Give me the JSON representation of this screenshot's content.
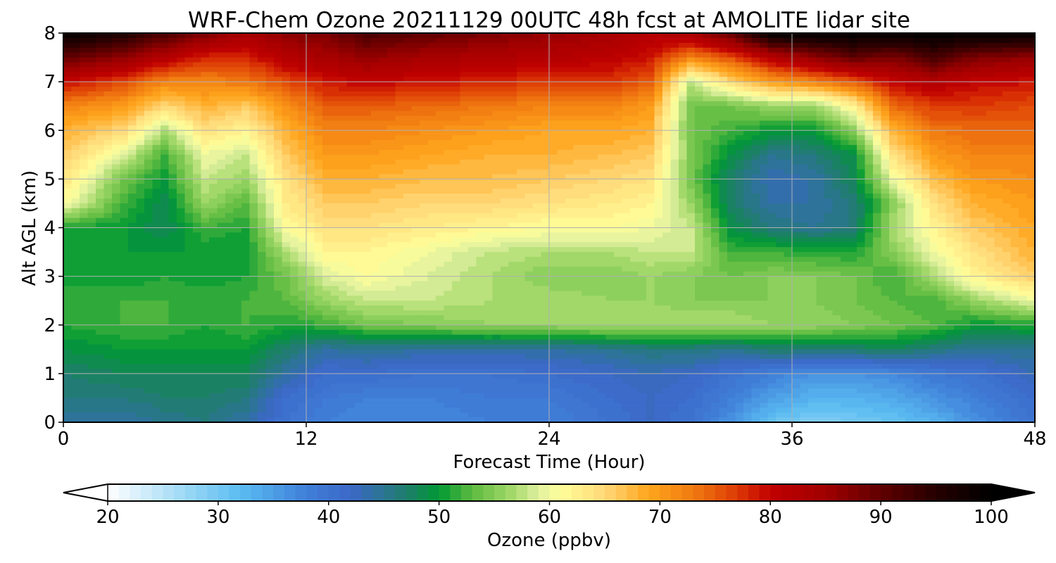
{
  "chart_data": {
    "type": "heatmap",
    "title": "WRF-Chem Ozone  20211129 00UTC 48h fcst at AMOLITE lidar site",
    "xlabel": "Forecast Time (Hour)",
    "ylabel": "Alt AGL (km)",
    "xlim": [
      0,
      48
    ],
    "ylim": [
      0,
      8
    ],
    "xticks": [
      "0",
      "12",
      "24",
      "36",
      "48"
    ],
    "yticks": [
      "0",
      "1",
      "2",
      "3",
      "4",
      "5",
      "6",
      "7",
      "8"
    ],
    "grid": true,
    "x_hours": [
      0,
      3,
      5,
      7,
      9,
      11,
      13,
      15,
      18,
      21,
      24,
      27,
      29,
      31,
      33,
      35,
      37,
      39,
      41,
      43,
      45,
      48
    ],
    "z_km": [
      0,
      0.5,
      1,
      1.5,
      2,
      2.5,
      3,
      3.5,
      4,
      4.5,
      5,
      5.5,
      6,
      6.5,
      7,
      7.5,
      8
    ],
    "ozone_ppbv": [
      [
        44,
        44,
        45,
        46,
        44,
        40,
        38,
        37,
        37,
        38,
        38,
        40,
        42,
        40,
        36,
        31,
        29,
        30,
        31,
        33,
        36,
        40
      ],
      [
        46,
        46,
        47,
        47,
        46,
        41,
        39,
        38,
        38,
        39,
        39,
        41,
        42,
        41,
        38,
        35,
        33,
        33,
        34,
        36,
        38,
        41
      ],
      [
        47,
        48,
        48,
        48,
        48,
        44,
        41,
        41,
        40,
        40,
        41,
        42,
        43,
        42,
        40,
        38,
        36,
        36,
        37,
        39,
        40,
        43
      ],
      [
        49,
        50,
        50,
        50,
        50,
        47,
        44,
        45,
        44,
        44,
        44,
        45,
        46,
        46,
        45,
        47,
        47,
        47,
        48,
        46,
        45,
        45
      ],
      [
        51,
        52,
        52,
        51,
        52,
        51,
        52,
        54,
        55,
        56,
        56,
        57,
        57,
        57,
        57,
        56,
        56,
        55,
        54,
        53,
        50,
        51
      ],
      [
        51,
        52,
        52,
        52,
        52,
        53,
        56,
        58,
        58,
        57,
        57,
        56,
        56,
        55,
        55,
        55,
        55,
        54,
        53,
        52,
        56,
        60
      ],
      [
        51,
        50,
        51,
        50,
        51,
        54,
        59,
        61,
        59,
        57,
        55,
        55,
        56,
        55,
        54,
        55,
        55,
        54,
        52,
        57,
        62,
        66
      ],
      [
        50,
        50,
        50,
        50,
        50,
        57,
        62,
        62,
        60,
        58,
        57,
        57,
        58,
        58,
        52,
        52,
        51,
        51,
        55,
        60,
        64,
        68
      ],
      [
        51,
        50,
        48,
        52,
        51,
        61,
        64,
        64,
        63,
        62,
        61,
        61,
        60,
        58,
        49,
        46,
        45,
        46,
        57,
        62,
        66,
        69
      ],
      [
        61,
        52,
        48,
        56,
        53,
        63,
        66,
        66,
        65,
        65,
        64,
        63,
        62,
        56,
        47,
        44,
        44,
        46,
        55,
        64,
        68,
        70
      ],
      [
        64,
        54,
        50,
        58,
        56,
        64,
        68,
        68,
        67,
        67,
        66,
        65,
        64,
        54,
        47,
        43,
        44,
        48,
        60,
        67,
        70,
        71
      ],
      [
        66,
        59,
        52,
        60,
        58,
        66,
        70,
        70,
        69,
        68,
        68,
        67,
        66,
        55,
        49,
        45,
        46,
        49,
        64,
        70,
        72,
        72
      ],
      [
        68,
        65,
        57,
        64,
        62,
        68,
        72,
        72,
        71,
        70,
        69,
        69,
        68,
        54,
        52,
        50,
        50,
        55,
        68,
        73,
        74,
        74
      ],
      [
        72,
        70,
        65,
        68,
        66,
        71,
        75,
        75,
        74,
        73,
        72,
        72,
        70,
        54,
        54,
        56,
        56,
        62,
        74,
        77,
        77,
        76
      ],
      [
        80,
        76,
        72,
        72,
        73,
        76,
        79,
        80,
        79,
        78,
        77,
        77,
        75,
        58,
        65,
        70,
        72,
        75,
        80,
        82,
        80,
        79
      ],
      [
        90,
        86,
        82,
        78,
        78,
        82,
        84,
        86,
        84,
        83,
        82,
        81,
        79,
        72,
        76,
        82,
        86,
        90,
        88,
        92,
        88,
        86
      ],
      [
        100,
        96,
        92,
        88,
        84,
        87,
        88,
        92,
        90,
        88,
        86,
        84,
        82,
        84,
        90,
        100,
        100,
        100,
        100,
        100,
        100,
        100
      ]
    ],
    "colorbar": {
      "label": "Ozone  (ppbv)",
      "ticks": [
        "20",
        "30",
        "40",
        "50",
        "60",
        "70",
        "80",
        "90",
        "100"
      ],
      "min": 20,
      "max": 100,
      "step": 1,
      "extend": "both"
    },
    "colormap_stops": [
      {
        "value": 20,
        "color": "#ffffff"
      },
      {
        "value": 28,
        "color": "#8fd3f4"
      },
      {
        "value": 32,
        "color": "#5bbcf2"
      },
      {
        "value": 38,
        "color": "#3f7fd8"
      },
      {
        "value": 42,
        "color": "#3c68c8"
      },
      {
        "value": 47,
        "color": "#1f7d6c"
      },
      {
        "value": 50,
        "color": "#009933"
      },
      {
        "value": 53,
        "color": "#5dbb40"
      },
      {
        "value": 57,
        "color": "#acdc70"
      },
      {
        "value": 59,
        "color": "#e0f0a0"
      },
      {
        "value": 61,
        "color": "#ffff99"
      },
      {
        "value": 65,
        "color": "#ffd878"
      },
      {
        "value": 69,
        "color": "#ffa51c"
      },
      {
        "value": 73,
        "color": "#f07a10"
      },
      {
        "value": 77,
        "color": "#dd3a05"
      },
      {
        "value": 80,
        "color": "#c00000"
      },
      {
        "value": 85,
        "color": "#a00000"
      },
      {
        "value": 90,
        "color": "#600000"
      },
      {
        "value": 95,
        "color": "#250000"
      },
      {
        "value": 100,
        "color": "#000000"
      }
    ]
  }
}
